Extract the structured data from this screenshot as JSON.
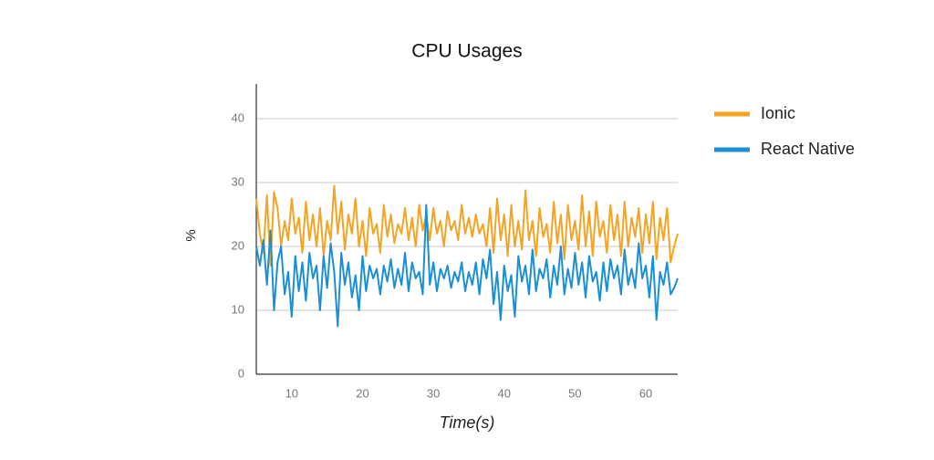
{
  "chart_data": {
    "type": "line",
    "title": "CPU Usages",
    "x_label": "Time(s)",
    "y_label": "%",
    "x": [
      5,
      5.5,
      6,
      6.5,
      7,
      7.5,
      8,
      8.5,
      9,
      9.5,
      10,
      10.5,
      11,
      11.5,
      12,
      12.5,
      13,
      13.5,
      14,
      14.5,
      15,
      15.5,
      16,
      16.5,
      17,
      17.5,
      18,
      18.5,
      19,
      19.5,
      20,
      20.5,
      21,
      21.5,
      22,
      22.5,
      23,
      23.5,
      24,
      24.5,
      25,
      25.5,
      26,
      26.5,
      27,
      27.5,
      28,
      28.5,
      29,
      29.5,
      30,
      30.5,
      31,
      31.5,
      32,
      32.5,
      33,
      33.5,
      34,
      34.5,
      35,
      35.5,
      36,
      36.5,
      37,
      37.5,
      38,
      38.5,
      39,
      39.5,
      40,
      40.5,
      41,
      41.5,
      42,
      42.5,
      43,
      43.5,
      44,
      44.5,
      45,
      45.5,
      46,
      46.5,
      47,
      47.5,
      48,
      48.5,
      49,
      49.5,
      50,
      50.5,
      51,
      51.5,
      52,
      52.5,
      53,
      53.5,
      54,
      54.5,
      55,
      55.5,
      56,
      56.5,
      57,
      57.5,
      58,
      58.5,
      59,
      59.5,
      60,
      60.5,
      61,
      61.5,
      62,
      62.5,
      63,
      63.5,
      64,
      64.5
    ],
    "series": [
      {
        "name": "Ionic",
        "color": "#f4a424",
        "values": [
          27.5,
          22,
          19,
          28,
          17,
          28.5,
          26,
          20,
          24,
          21,
          27.5,
          22,
          24.5,
          19,
          27,
          21,
          25,
          20,
          26,
          18.5,
          24,
          21,
          29.5,
          22,
          27,
          19.5,
          25,
          22,
          27.5,
          20,
          24,
          18.5,
          26,
          22,
          23.5,
          19,
          26.5,
          21.5,
          25,
          20.5,
          23.5,
          22,
          26,
          21,
          24.5,
          20,
          26.5,
          22.5,
          25,
          21,
          26,
          22,
          24,
          20,
          25.5,
          22.5,
          24,
          21,
          26.5,
          22,
          24.5,
          21.5,
          25,
          22,
          23.5,
          20,
          26,
          19,
          27.5,
          21,
          25,
          18.5,
          26.5,
          20,
          24,
          19.5,
          28.8,
          21,
          24,
          18.5,
          26,
          21.5,
          23.5,
          19,
          27,
          20.5,
          25,
          18,
          26.5,
          21,
          24,
          19.5,
          28,
          20,
          25.5,
          18.5,
          27,
          21.5,
          24,
          19,
          26.5,
          21,
          25,
          18.5,
          27,
          20,
          24.5,
          21.5,
          26,
          19,
          25,
          20.5,
          27,
          18,
          24.5,
          21,
          26,
          17.5,
          20,
          22
        ]
      },
      {
        "name": "React Native",
        "color": "#1a8fd6",
        "values": [
          20,
          17,
          21,
          14,
          22.5,
          10,
          17.5,
          20,
          12.5,
          16,
          9,
          18.5,
          13,
          17.5,
          11.5,
          19,
          15,
          17,
          10,
          18.5,
          13.5,
          20.5,
          16,
          7.5,
          19,
          14,
          17.5,
          12,
          15.5,
          10,
          18.5,
          13,
          17,
          15,
          16.5,
          12.5,
          17,
          14.5,
          18,
          13.5,
          16.5,
          14,
          19,
          13,
          17.5,
          15,
          16,
          12.5,
          26.5,
          14,
          17.5,
          13,
          16.5,
          15,
          17,
          13.5,
          16,
          14.5,
          17.5,
          13,
          16,
          14,
          17.5,
          12.5,
          18,
          15,
          19.5,
          11,
          16,
          8.5,
          17,
          13,
          15.5,
          9,
          18.5,
          14.5,
          17,
          12.5,
          19.5,
          13,
          16.5,
          15,
          18,
          12,
          17,
          14,
          20,
          12.5,
          16.5,
          13.5,
          19,
          14,
          17.5,
          12,
          18.5,
          14.5,
          16,
          11.5,
          17.5,
          13,
          18,
          15,
          17,
          12.5,
          19.5,
          14,
          16.5,
          13.5,
          20.5,
          15,
          17,
          12,
          18.5,
          8.5,
          16,
          14,
          17.5,
          12.5,
          13.5,
          15
        ]
      }
    ],
    "xlim": [
      5,
      64.5
    ],
    "xticks": [
      10,
      20,
      30,
      40,
      50,
      60
    ],
    "ylim": [
      0,
      45
    ],
    "yticks": [
      0,
      10,
      20,
      30,
      40
    ],
    "grid": true,
    "legend": "right"
  }
}
